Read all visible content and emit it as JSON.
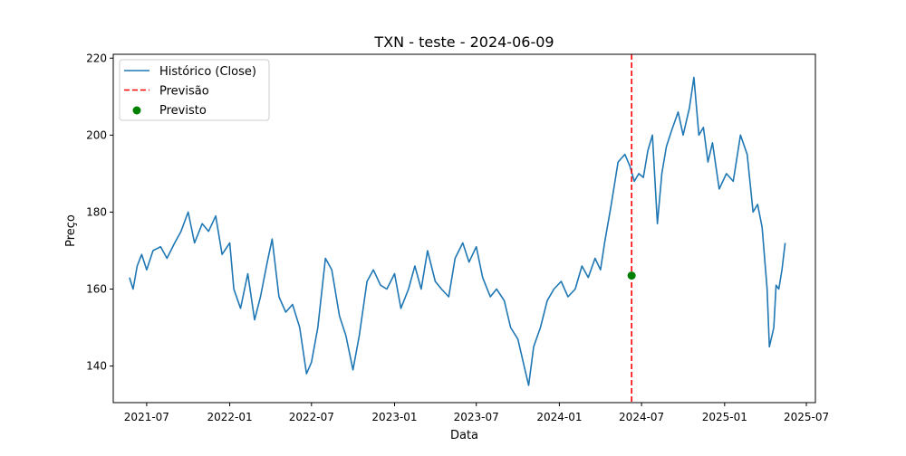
{
  "chart_data": {
    "type": "line",
    "title": "TXN - teste - 2024-06-09",
    "xlabel": "Data",
    "ylabel": "Preço",
    "xlim": [
      "2021-04-18",
      "2025-07-21"
    ],
    "ylim": [
      130.5,
      221.0
    ],
    "x_ticks": [
      "2021-07",
      "2022-01",
      "2022-07",
      "2023-01",
      "2023-07",
      "2024-01",
      "2024-07",
      "2025-01",
      "2025-07"
    ],
    "y_ticks": [
      140,
      160,
      180,
      200,
      220
    ],
    "grid": false,
    "legend": {
      "placement": "upper-left",
      "entries": [
        {
          "label": "Histórico (Close)",
          "marker": "line",
          "color": "#1f77b4"
        },
        {
          "label": "Previsão",
          "marker": "dashed-line",
          "color": "#ff0000"
        },
        {
          "label": "Previsto",
          "marker": "dot",
          "color": "#008000"
        }
      ]
    },
    "series": [
      {
        "name": "Histórico (Close)",
        "color": "#1f77b4",
        "points": [
          [
            "2021-05-24",
            163
          ],
          [
            "2021-06-01",
            160
          ],
          [
            "2021-06-10",
            166
          ],
          [
            "2021-06-20",
            169
          ],
          [
            "2021-07-01",
            165
          ],
          [
            "2021-07-15",
            170
          ],
          [
            "2021-08-01",
            171
          ],
          [
            "2021-08-15",
            168
          ],
          [
            "2021-09-01",
            172
          ],
          [
            "2021-09-15",
            175
          ],
          [
            "2021-10-01",
            180
          ],
          [
            "2021-10-15",
            172
          ],
          [
            "2021-11-01",
            177
          ],
          [
            "2021-11-15",
            175
          ],
          [
            "2021-12-01",
            179
          ],
          [
            "2021-12-15",
            169
          ],
          [
            "2022-01-01",
            172
          ],
          [
            "2022-01-10",
            160
          ],
          [
            "2022-01-25",
            155
          ],
          [
            "2022-02-10",
            164
          ],
          [
            "2022-02-25",
            152
          ],
          [
            "2022-03-10",
            158
          ],
          [
            "2022-03-25",
            167
          ],
          [
            "2022-04-05",
            173
          ],
          [
            "2022-04-20",
            158
          ],
          [
            "2022-05-05",
            154
          ],
          [
            "2022-05-20",
            156
          ],
          [
            "2022-06-05",
            150
          ],
          [
            "2022-06-20",
            138
          ],
          [
            "2022-07-01",
            141
          ],
          [
            "2022-07-15",
            150
          ],
          [
            "2022-08-01",
            168
          ],
          [
            "2022-08-15",
            165
          ],
          [
            "2022-09-01",
            153
          ],
          [
            "2022-09-15",
            148
          ],
          [
            "2022-10-01",
            139
          ],
          [
            "2022-10-15",
            148
          ],
          [
            "2022-11-01",
            162
          ],
          [
            "2022-11-15",
            165
          ],
          [
            "2022-12-01",
            161
          ],
          [
            "2022-12-15",
            160
          ],
          [
            "2023-01-01",
            164
          ],
          [
            "2023-01-15",
            155
          ],
          [
            "2023-02-01",
            160
          ],
          [
            "2023-02-15",
            166
          ],
          [
            "2023-03-01",
            160
          ],
          [
            "2023-03-15",
            170
          ],
          [
            "2023-04-01",
            162
          ],
          [
            "2023-04-15",
            160
          ],
          [
            "2023-05-01",
            158
          ],
          [
            "2023-05-15",
            168
          ],
          [
            "2023-06-01",
            172
          ],
          [
            "2023-06-15",
            167
          ],
          [
            "2023-07-01",
            171
          ],
          [
            "2023-07-15",
            163
          ],
          [
            "2023-08-01",
            158
          ],
          [
            "2023-08-15",
            160
          ],
          [
            "2023-09-01",
            157
          ],
          [
            "2023-09-15",
            150
          ],
          [
            "2023-10-01",
            147
          ],
          [
            "2023-10-15",
            140
          ],
          [
            "2023-10-25",
            135
          ],
          [
            "2023-11-05",
            145
          ],
          [
            "2023-11-20",
            150
          ],
          [
            "2023-12-05",
            157
          ],
          [
            "2023-12-20",
            160
          ],
          [
            "2024-01-05",
            162
          ],
          [
            "2024-01-20",
            158
          ],
          [
            "2024-02-05",
            160
          ],
          [
            "2024-02-20",
            166
          ],
          [
            "2024-03-05",
            163
          ],
          [
            "2024-03-20",
            168
          ],
          [
            "2024-04-01",
            165
          ],
          [
            "2024-04-10",
            172
          ],
          [
            "2024-04-25",
            182
          ],
          [
            "2024-05-10",
            193
          ],
          [
            "2024-05-25",
            195
          ],
          [
            "2024-06-05",
            192
          ],
          [
            "2024-06-15",
            188
          ],
          [
            "2024-06-25",
            190
          ],
          [
            "2024-07-05",
            189
          ],
          [
            "2024-07-15",
            196
          ],
          [
            "2024-07-25",
            200
          ],
          [
            "2024-08-05",
            177
          ],
          [
            "2024-08-15",
            190
          ],
          [
            "2024-08-25",
            197
          ],
          [
            "2024-09-05",
            201
          ],
          [
            "2024-09-20",
            206
          ],
          [
            "2024-10-01",
            200
          ],
          [
            "2024-10-15",
            207
          ],
          [
            "2024-10-25",
            215
          ],
          [
            "2024-11-05",
            200
          ],
          [
            "2024-11-15",
            202
          ],
          [
            "2024-11-25",
            193
          ],
          [
            "2024-12-05",
            198
          ],
          [
            "2024-12-20",
            186
          ],
          [
            "2025-01-05",
            190
          ],
          [
            "2025-01-20",
            188
          ],
          [
            "2025-02-05",
            200
          ],
          [
            "2025-02-20",
            195
          ],
          [
            "2025-03-05",
            180
          ],
          [
            "2025-03-15",
            182
          ],
          [
            "2025-03-25",
            176
          ],
          [
            "2025-04-05",
            160
          ],
          [
            "2025-04-10",
            145
          ],
          [
            "2025-04-20",
            150
          ],
          [
            "2025-04-25",
            161
          ],
          [
            "2025-05-01",
            160
          ],
          [
            "2025-05-08",
            165
          ],
          [
            "2025-05-15",
            172
          ]
        ]
      }
    ],
    "forecast_line": {
      "name": "Previsão",
      "x": "2024-06-09",
      "color": "#ff0000",
      "style": "dashed"
    },
    "forecast_point": {
      "name": "Previsto",
      "x": "2024-06-09",
      "y": 163.5,
      "color": "#008000"
    }
  }
}
